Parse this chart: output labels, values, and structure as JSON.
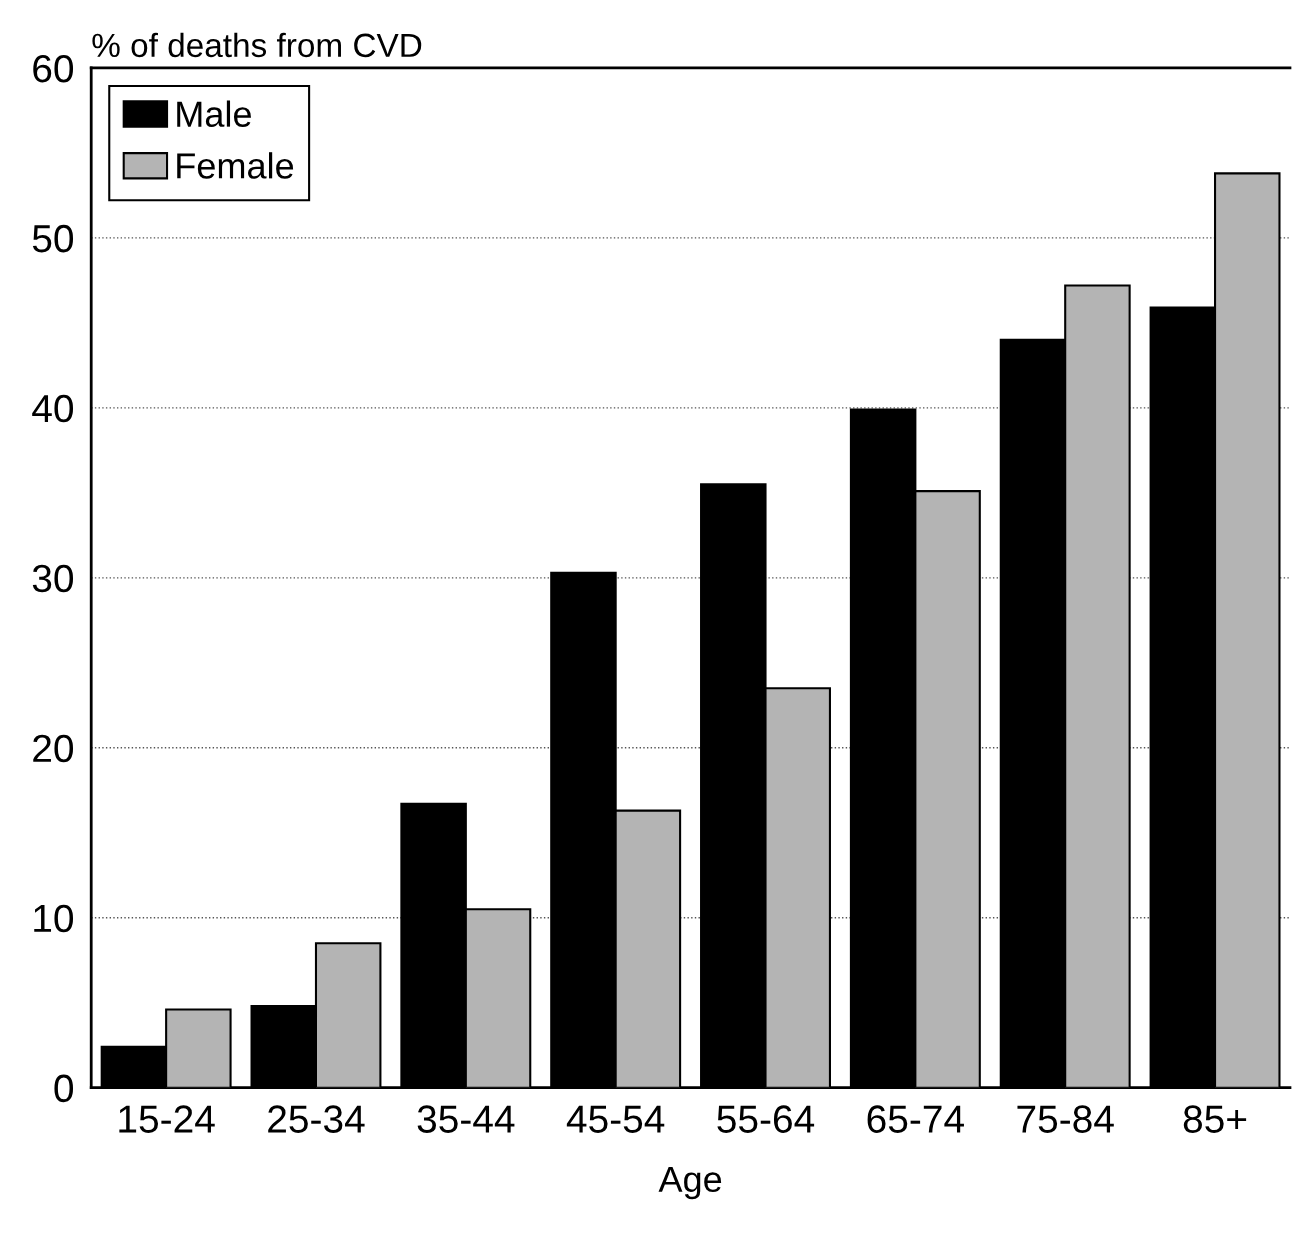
{
  "chart_data": {
    "type": "bar",
    "ylabel": "% of deaths from CVD",
    "xlabel": "Age",
    "categories": [
      "15-24",
      "25-34",
      "35-44",
      "45-54",
      "55-64",
      "65-74",
      "75-84",
      "85+"
    ],
    "series": [
      {
        "name": "Male",
        "color": "#000000",
        "values": [
          2.4,
          4.8,
          16.7,
          30.3,
          35.5,
          39.9,
          44.0,
          45.9
        ]
      },
      {
        "name": "Female",
        "color": "#b4b4b4",
        "values": [
          4.6,
          8.5,
          10.5,
          16.3,
          23.5,
          35.1,
          47.2,
          53.8
        ]
      }
    ],
    "ylim": [
      0,
      60
    ],
    "yticks": [
      0,
      10,
      20,
      30,
      40,
      50,
      60
    ],
    "grid": "y",
    "legend": "top left"
  }
}
